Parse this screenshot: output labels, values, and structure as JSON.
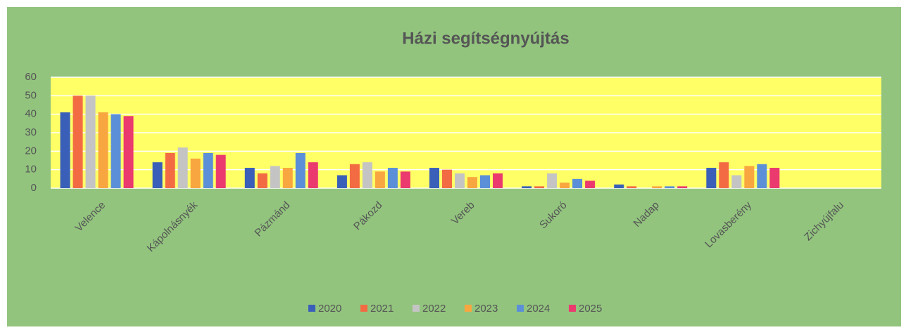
{
  "chart_data": {
    "type": "bar",
    "title": "Házi segítségnyújtás",
    "categories": [
      "Velence",
      "Kápolnásnyék",
      "Pázmánd",
      "Pákozd",
      "Vereb",
      "Sukoró",
      "Nadap",
      "Lovasberény",
      "Zichyújfalu"
    ],
    "series": [
      {
        "name": "2020",
        "color": "#3a5fb8",
        "values": [
          41,
          14,
          11,
          7,
          11,
          1,
          2,
          11,
          0
        ]
      },
      {
        "name": "2021",
        "color": "#f26b43",
        "values": [
          50,
          19,
          8,
          13,
          10,
          1,
          1,
          14,
          0
        ]
      },
      {
        "name": "2022",
        "color": "#c4c4c4",
        "values": [
          50,
          22,
          12,
          14,
          8,
          8,
          0,
          7,
          0
        ]
      },
      {
        "name": "2023",
        "color": "#f8a640",
        "values": [
          41,
          16,
          11,
          9,
          6,
          3,
          1,
          12,
          0
        ]
      },
      {
        "name": "2024",
        "color": "#5b8fd8",
        "values": [
          40,
          19,
          19,
          11,
          7,
          5,
          1,
          13,
          0
        ]
      },
      {
        "name": "2025",
        "color": "#ea3a6e",
        "values": [
          39,
          18,
          14,
          9,
          8,
          4,
          1,
          11,
          0
        ]
      }
    ],
    "ylim": [
      0,
      60
    ],
    "yticks": [
      0,
      10,
      20,
      30,
      40,
      50,
      60
    ],
    "grid": true,
    "legend": "bottom"
  }
}
